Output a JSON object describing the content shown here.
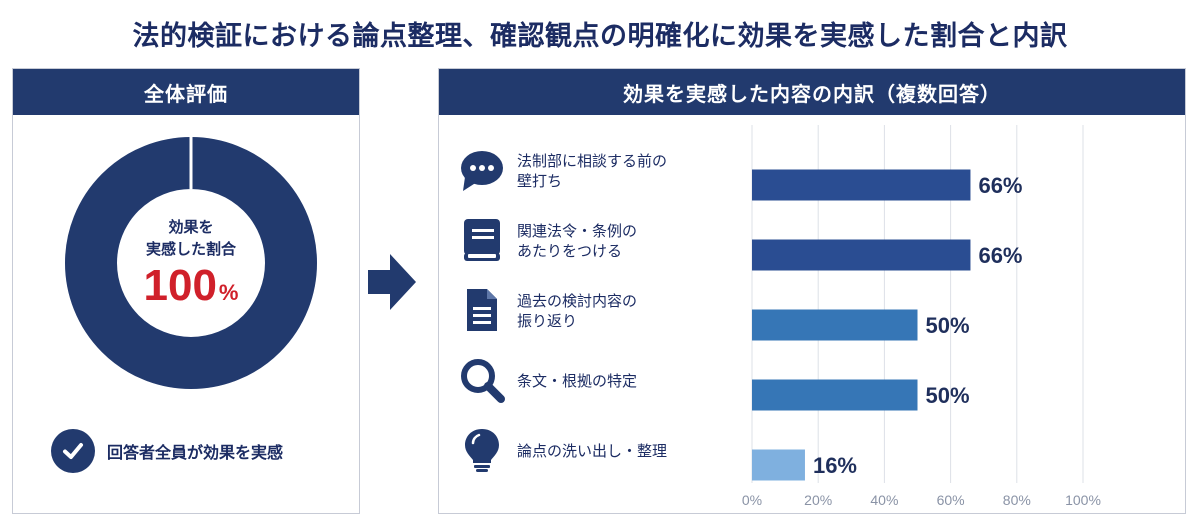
{
  "title": "法的検証における論点整理、確認観点の明確化に効果を実感した割合と内訳",
  "left_panel": {
    "header": "全体評価",
    "donut_label_line1": "効果を",
    "donut_label_line2": "実感した割合",
    "donut_value": "100",
    "donut_unit": "%",
    "donut_fraction": 1.0,
    "check_text": "回答者全員が効果を実感"
  },
  "right_panel": {
    "header": "効果を実感した内容の内訳（複数回答）"
  },
  "colors": {
    "navy": "#223a6e",
    "bar_dark": "#2a4d92",
    "bar_mid": "#3676b6",
    "bar_light": "#7fb0df",
    "accent_red": "#d0202a"
  },
  "chart_data": {
    "type": "bar",
    "orientation": "horizontal",
    "categories": [
      [
        "法制部に相談する前の",
        "壁打ち"
      ],
      [
        "関連法令・条例の",
        "あたりをつける"
      ],
      [
        "過去の検討内容の",
        "振り返り"
      ],
      [
        "条文・根拠の特定"
      ],
      [
        "論点の洗い出し・整理"
      ]
    ],
    "icons": [
      "chat-bubble-icon",
      "book-icon",
      "document-icon",
      "search-icon",
      "lightbulb-icon"
    ],
    "values": [
      66,
      66,
      50,
      50,
      16
    ],
    "value_labels": [
      "66%",
      "66%",
      "50%",
      "50%",
      "16%"
    ],
    "bar_colors": [
      "#2a4d92",
      "#2a4d92",
      "#3676b6",
      "#3676b6",
      "#7fb0df"
    ],
    "xlim": [
      0,
      100
    ],
    "xticks": [
      "0%",
      "20%",
      "40%",
      "60%",
      "80%",
      "100%"
    ],
    "grid": true
  }
}
